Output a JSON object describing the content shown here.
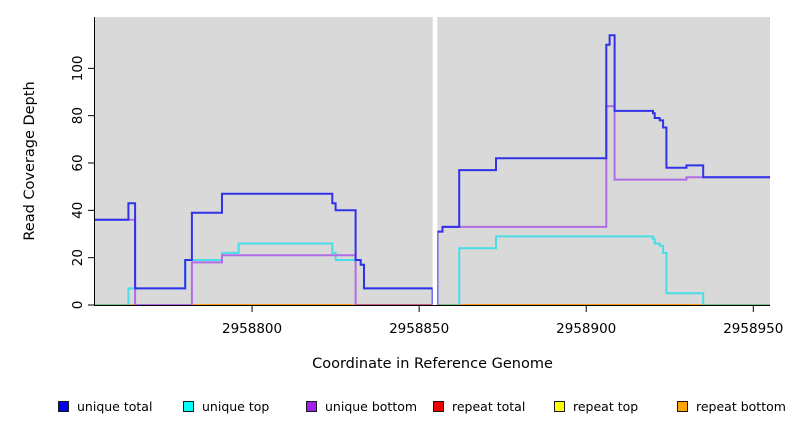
{
  "chart": {
    "xlabel": "Coordinate in Reference Genome",
    "ylabel": "Read Coverage Depth",
    "plot_bg": "#d9d9d9",
    "axis_color": "#000000",
    "gap_color": "#ffffff",
    "xlim": [
      2958753,
      2958955
    ],
    "ylim": [
      0,
      121.7
    ],
    "x_tick_values": [
      2958800,
      2958850,
      2958900,
      2958950
    ],
    "x_tick_labels": [
      "2958800",
      "2958850",
      "2958900",
      "2958950"
    ],
    "y_tick_values": [
      0,
      20,
      40,
      60,
      80,
      100
    ],
    "y_tick_labels": [
      "0",
      "20",
      "40",
      "60",
      "80",
      "100"
    ],
    "gap": [
      2958854.05,
      2958855.45
    ],
    "chart_data": {
      "type": "line",
      "note": "step coverage plot; each segment point is [genome_coordinate, depth]; value holds until next point",
      "series": [
        {
          "name": "unique total",
          "color": "#0000ee",
          "stroke": "#3032e8",
          "width": 2,
          "segments": [
            [
              [
                2958753,
                36
              ],
              [
                2958763,
                43
              ],
              [
                2958765,
                7
              ],
              [
                2958780,
                19
              ],
              [
                2958782,
                39
              ],
              [
                2958791,
                47
              ],
              [
                2958824,
                43
              ],
              [
                2958825,
                40
              ],
              [
                2958831,
                19
              ],
              [
                2958832.5,
                17
              ],
              [
                2958833.5,
                7
              ],
              [
                2958854.05,
                0
              ]
            ],
            [
              [
                2958855.45,
                0
              ],
              [
                2958855.45,
                31
              ],
              [
                2958857,
                33
              ],
              [
                2958862,
                57
              ],
              [
                2958873,
                62
              ],
              [
                2958906,
                110
              ],
              [
                2958907,
                114
              ],
              [
                2958908.5,
                82
              ],
              [
                2958920,
                81
              ],
              [
                2958920.5,
                79
              ],
              [
                2958922,
                78
              ],
              [
                2958923,
                75
              ],
              [
                2958924,
                58
              ],
              [
                2958930,
                59
              ],
              [
                2958935,
                54
              ],
              [
                2958955,
                54
              ]
            ]
          ]
        },
        {
          "name": "unique top",
          "color": "#00ffff",
          "stroke": "#49dde8",
          "width": 2,
          "segments": [
            [
              [
                2958763,
                0
              ],
              [
                2958763,
                7
              ],
              [
                2958780,
                19
              ],
              [
                2958791,
                22
              ],
              [
                2958796,
                26
              ],
              [
                2958824,
                22
              ],
              [
                2958825,
                19
              ],
              [
                2958832.5,
                17
              ],
              [
                2958833.5,
                7
              ],
              [
                2958854.05,
                0
              ]
            ],
            [
              [
                2958862,
                0
              ],
              [
                2958862,
                24
              ],
              [
                2958873,
                29
              ],
              [
                2958920,
                28
              ],
              [
                2958920.5,
                26
              ],
              [
                2958922,
                25
              ],
              [
                2958923,
                22
              ],
              [
                2958924,
                5
              ],
              [
                2958935,
                0
              ]
            ]
          ]
        },
        {
          "name": "unique bottom",
          "color": "#a020f0",
          "stroke": "#b06ce6",
          "width": 2,
          "segments": [
            [
              [
                2958753,
                36
              ],
              [
                2958765,
                0
              ],
              [
                2958782,
                18
              ],
              [
                2958791,
                21
              ],
              [
                2958831,
                0
              ],
              [
                2958854.05,
                0
              ]
            ],
            [
              [
                2958855.45,
                0
              ],
              [
                2958855.45,
                31
              ],
              [
                2958857,
                33
              ],
              [
                2958906,
                84
              ],
              [
                2958908.5,
                53
              ],
              [
                2958930,
                54
              ],
              [
                2958955,
                54
              ]
            ]
          ]
        },
        {
          "name": "repeat total",
          "color": "#ee0000",
          "stroke": "#e03030",
          "width": 2,
          "segments": [
            [
              [
                2958753,
                0
              ],
              [
                2958854.05,
                0
              ]
            ],
            [
              [
                2958855.45,
                0
              ],
              [
                2958955,
                0
              ]
            ]
          ]
        },
        {
          "name": "repeat top",
          "color": "#ffff00",
          "stroke": "#f5e642",
          "width": 2,
          "segments": [
            [
              [
                2958753,
                0
              ],
              [
                2958854.05,
                0
              ]
            ],
            [
              [
                2958855.45,
                0
              ],
              [
                2958955,
                0
              ]
            ]
          ]
        },
        {
          "name": "repeat bottom",
          "color": "#ffa500",
          "stroke": "#ff9e1a",
          "width": 2,
          "segments": [
            [
              [
                2958753,
                0
              ],
              [
                2958854.05,
                0
              ]
            ],
            [
              [
                2958855.45,
                0
              ],
              [
                2958955,
                0
              ]
            ]
          ]
        }
      ],
      "baseline_overlays": [
        {
          "color": "#74c48c",
          "ranges": [
            [
              2958753,
              2958763
            ],
            [
              2958856,
              2958862
            ],
            [
              2958935,
              2958955
            ]
          ]
        },
        {
          "color": "#c4608a",
          "ranges": [
            [
              2958831,
              2958854.05
            ]
          ]
        }
      ]
    },
    "legend": [
      {
        "label": "unique total",
        "color": "#0000ee"
      },
      {
        "label": "unique top",
        "color": "#00ffff"
      },
      {
        "label": "unique bottom",
        "color": "#a020f0"
      },
      {
        "label": "repeat total",
        "color": "#ee0000"
      },
      {
        "label": "repeat top",
        "color": "#ffff00"
      },
      {
        "label": "repeat bottom",
        "color": "#ffa500"
      }
    ]
  }
}
